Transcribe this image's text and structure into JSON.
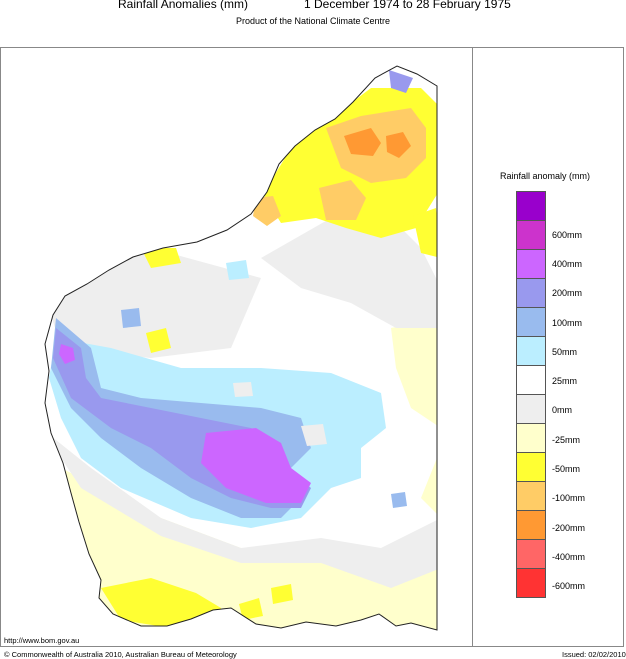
{
  "header": {
    "title_left": "Rainfall Anomalies (mm)",
    "title_right": "1 December 1974 to 28 February 1975",
    "subtitle": "Product of the National Climate Centre"
  },
  "legend": {
    "title": "Rainfall anomaly (mm)",
    "items": [
      {
        "label": "",
        "color": "#9900cc"
      },
      {
        "label": "600mm",
        "color": "#cc33cc"
      },
      {
        "label": "400mm",
        "color": "#cc66ff"
      },
      {
        "label": "200mm",
        "color": "#9999ee"
      },
      {
        "label": "100mm",
        "color": "#99bbee"
      },
      {
        "label": "50mm",
        "color": "#bbeeff"
      },
      {
        "label": "25mm",
        "color": "#ffffff"
      },
      {
        "label": "0mm",
        "color": "#eeeeee"
      },
      {
        "label": "-25mm",
        "color": "#ffffcc"
      },
      {
        "label": "-50mm",
        "color": "#ffff33"
      },
      {
        "label": "-100mm",
        "color": "#ffcc66"
      },
      {
        "label": "-200mm",
        "color": "#ff9933"
      },
      {
        "label": "-400mm",
        "color": "#ff6666"
      },
      {
        "label": "-600mm",
        "color": "#ff3333"
      }
    ]
  },
  "footer": {
    "url": "http://www.bom.gov.au",
    "copyright": "© Commonwealth of Australia 2010, Australian Bureau of Meteorology",
    "issued": "Issued: 02/02/2010"
  }
}
